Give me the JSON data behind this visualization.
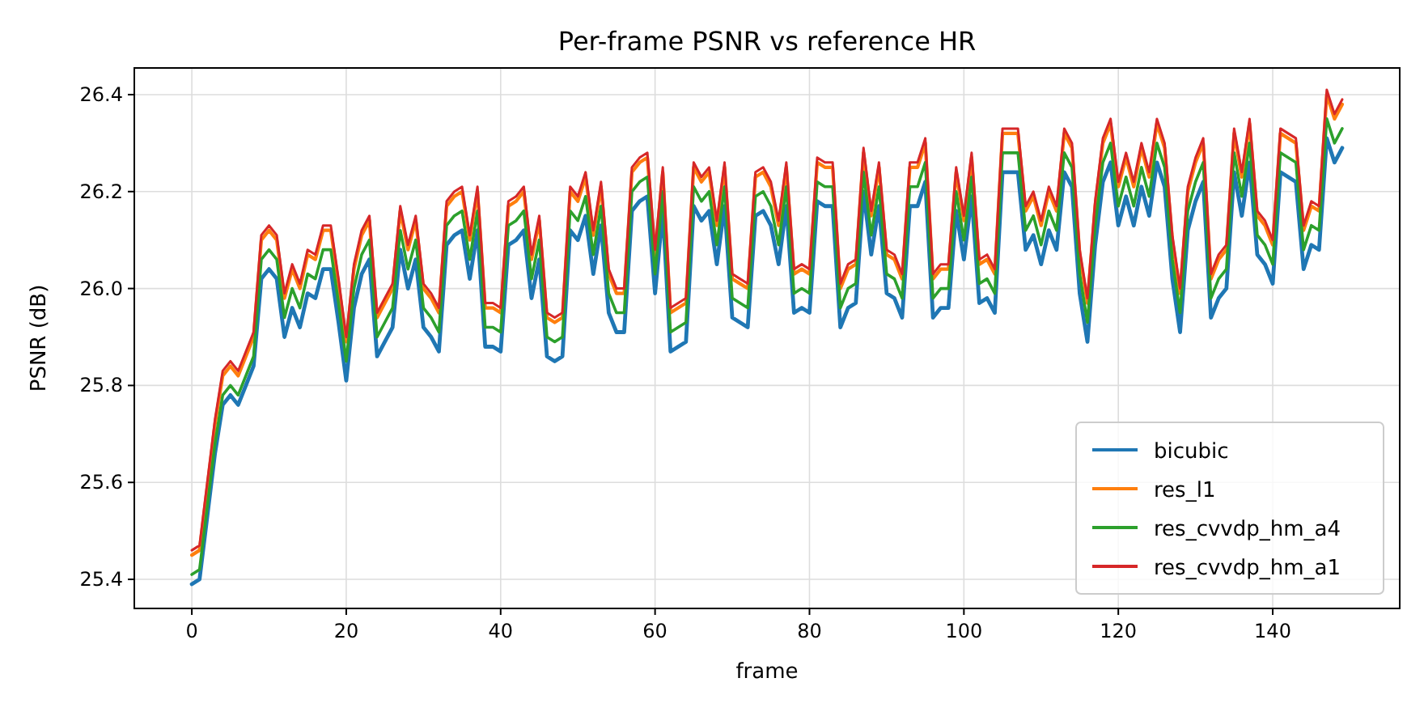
{
  "chart_data": {
    "type": "line",
    "title": "Per-frame PSNR vs reference HR",
    "xlabel": "frame",
    "ylabel": "PSNR (dB)",
    "x": [
      0,
      1,
      2,
      3,
      4,
      5,
      6,
      7,
      8,
      9,
      10,
      11,
      12,
      13,
      14,
      15,
      16,
      17,
      18,
      19,
      20,
      21,
      22,
      23,
      24,
      25,
      26,
      27,
      28,
      29,
      30,
      31,
      32,
      33,
      34,
      35,
      36,
      37,
      38,
      39,
      40,
      41,
      42,
      43,
      44,
      45,
      46,
      47,
      48,
      49,
      50,
      51,
      52,
      53,
      54,
      55,
      56,
      57,
      58,
      59,
      60,
      61,
      62,
      63,
      64,
      65,
      66,
      67,
      68,
      69,
      70,
      71,
      72,
      73,
      74,
      75,
      76,
      77,
      78,
      79,
      80,
      81,
      82,
      83,
      84,
      85,
      86,
      87,
      88,
      89,
      90,
      91,
      92,
      93,
      94,
      95,
      96,
      97,
      98,
      99,
      100,
      101,
      102,
      103,
      104,
      105,
      106,
      107,
      108,
      109,
      110,
      111,
      112,
      113,
      114,
      115,
      116,
      117,
      118,
      119,
      120,
      121,
      122,
      123,
      124,
      125,
      126,
      127,
      128,
      129,
      130,
      131,
      132,
      133,
      134,
      135,
      136,
      137,
      138,
      139,
      140,
      141,
      142,
      143,
      144,
      145,
      146,
      147,
      148,
      149
    ],
    "series": [
      {
        "name": "bicubic",
        "color": "#1f77b4",
        "values": [
          25.39,
          25.4,
          25.53,
          25.66,
          25.76,
          25.78,
          25.76,
          25.8,
          25.84,
          26.02,
          26.04,
          26.02,
          25.9,
          25.96,
          25.92,
          25.99,
          25.98,
          26.04,
          26.04,
          25.93,
          25.81,
          25.96,
          26.03,
          26.06,
          25.86,
          25.89,
          25.92,
          26.08,
          26.0,
          26.06,
          25.92,
          25.9,
          25.87,
          26.09,
          26.11,
          26.12,
          26.02,
          26.12,
          25.88,
          25.88,
          25.87,
          26.09,
          26.1,
          26.12,
          25.98,
          26.06,
          25.86,
          25.85,
          25.86,
          26.12,
          26.1,
          26.15,
          26.03,
          26.13,
          25.95,
          25.91,
          25.91,
          26.16,
          26.18,
          26.19,
          25.99,
          26.16,
          25.87,
          25.88,
          25.89,
          26.17,
          26.14,
          26.16,
          26.05,
          26.17,
          25.94,
          25.93,
          25.92,
          26.15,
          26.16,
          26.13,
          26.05,
          26.17,
          25.95,
          25.96,
          25.95,
          26.18,
          26.17,
          26.17,
          25.92,
          25.96,
          25.97,
          26.2,
          26.07,
          26.17,
          25.99,
          25.98,
          25.94,
          26.17,
          26.17,
          26.22,
          25.94,
          25.96,
          25.96,
          26.16,
          26.06,
          26.19,
          25.97,
          25.98,
          25.95,
          26.24,
          26.24,
          26.24,
          26.08,
          26.11,
          26.05,
          26.12,
          26.08,
          26.24,
          26.21,
          25.99,
          25.89,
          26.09,
          26.22,
          26.26,
          26.13,
          26.19,
          26.13,
          26.21,
          26.15,
          26.26,
          26.21,
          26.02,
          25.91,
          26.12,
          26.18,
          26.22,
          25.94,
          25.98,
          26.0,
          26.24,
          26.15,
          26.26,
          26.07,
          26.05,
          26.01,
          26.24,
          26.23,
          26.22,
          26.04,
          26.09,
          26.08,
          26.31,
          26.26,
          26.29
        ]
      },
      {
        "name": "res_l1",
        "color": "#ff7f0e",
        "values": [
          25.45,
          25.46,
          25.59,
          25.72,
          25.82,
          25.84,
          25.82,
          25.86,
          25.9,
          26.1,
          26.12,
          26.1,
          25.98,
          26.04,
          26.0,
          26.07,
          26.06,
          26.12,
          26.12,
          26.01,
          25.89,
          26.04,
          26.11,
          26.14,
          25.94,
          25.97,
          26.0,
          26.16,
          26.08,
          26.14,
          26.0,
          25.98,
          25.95,
          26.17,
          26.19,
          26.2,
          26.1,
          26.2,
          25.96,
          25.96,
          25.95,
          26.17,
          26.18,
          26.2,
          26.06,
          26.14,
          25.94,
          25.93,
          25.94,
          26.2,
          26.18,
          26.23,
          26.11,
          26.21,
          26.03,
          25.99,
          25.99,
          26.24,
          26.26,
          26.27,
          26.07,
          26.24,
          25.95,
          25.96,
          25.97,
          26.25,
          26.22,
          26.24,
          26.13,
          26.25,
          26.02,
          26.01,
          26.0,
          26.23,
          26.24,
          26.21,
          26.13,
          26.25,
          26.03,
          26.04,
          26.03,
          26.26,
          26.25,
          26.25,
          26.0,
          26.04,
          26.05,
          26.28,
          26.15,
          26.25,
          26.07,
          26.06,
          26.02,
          26.25,
          26.25,
          26.3,
          26.02,
          26.04,
          26.04,
          26.24,
          26.14,
          26.27,
          26.05,
          26.06,
          26.03,
          26.32,
          26.32,
          26.32,
          26.16,
          26.19,
          26.13,
          26.2,
          26.16,
          26.32,
          26.29,
          26.07,
          25.97,
          26.17,
          26.3,
          26.34,
          26.21,
          26.27,
          26.21,
          26.29,
          26.23,
          26.34,
          26.29,
          26.1,
          25.99,
          26.2,
          26.26,
          26.3,
          26.02,
          26.06,
          26.08,
          26.32,
          26.23,
          26.34,
          26.15,
          26.13,
          26.09,
          26.32,
          26.31,
          26.3,
          26.12,
          26.17,
          26.16,
          26.4,
          26.35,
          26.38
        ]
      },
      {
        "name": "res_cvvdp_hm_a4",
        "color": "#2ca02c",
        "values": [
          25.41,
          25.42,
          25.55,
          25.68,
          25.78,
          25.8,
          25.78,
          25.82,
          25.86,
          26.06,
          26.08,
          26.06,
          25.94,
          26.0,
          25.96,
          26.03,
          26.02,
          26.08,
          26.08,
          25.97,
          25.85,
          26.0,
          26.07,
          26.1,
          25.9,
          25.93,
          25.96,
          26.12,
          26.04,
          26.1,
          25.96,
          25.94,
          25.91,
          26.13,
          26.15,
          26.16,
          26.06,
          26.16,
          25.92,
          25.92,
          25.91,
          26.13,
          26.14,
          26.16,
          26.02,
          26.1,
          25.9,
          25.89,
          25.9,
          26.16,
          26.14,
          26.19,
          26.07,
          26.17,
          25.99,
          25.95,
          25.95,
          26.2,
          26.22,
          26.23,
          26.03,
          26.2,
          25.91,
          25.92,
          25.93,
          26.21,
          26.18,
          26.2,
          26.09,
          26.21,
          25.98,
          25.97,
          25.96,
          26.19,
          26.2,
          26.17,
          26.09,
          26.21,
          25.99,
          26.0,
          25.99,
          26.22,
          26.21,
          26.21,
          25.96,
          26.0,
          26.01,
          26.24,
          26.11,
          26.21,
          26.03,
          26.02,
          25.98,
          26.21,
          26.21,
          26.26,
          25.98,
          26.0,
          26.0,
          26.2,
          26.1,
          26.23,
          26.01,
          26.02,
          25.99,
          26.28,
          26.28,
          26.28,
          26.12,
          26.15,
          26.09,
          26.16,
          26.12,
          26.28,
          26.25,
          26.03,
          25.93,
          26.13,
          26.26,
          26.3,
          26.17,
          26.23,
          26.17,
          26.25,
          26.19,
          26.3,
          26.25,
          26.06,
          25.95,
          26.16,
          26.22,
          26.26,
          25.98,
          26.02,
          26.04,
          26.28,
          26.19,
          26.3,
          26.11,
          26.09,
          26.05,
          26.28,
          26.27,
          26.26,
          26.08,
          26.13,
          26.12,
          26.35,
          26.3,
          26.33
        ]
      },
      {
        "name": "res_cvvdp_hm_a1",
        "color": "#d62728",
        "values": [
          25.46,
          25.47,
          25.6,
          25.73,
          25.83,
          25.85,
          25.83,
          25.87,
          25.91,
          26.11,
          26.13,
          26.11,
          25.99,
          26.05,
          26.01,
          26.08,
          26.07,
          26.13,
          26.13,
          26.02,
          25.9,
          26.05,
          26.12,
          26.15,
          25.95,
          25.98,
          26.01,
          26.17,
          26.09,
          26.15,
          26.01,
          25.99,
          25.96,
          26.18,
          26.2,
          26.21,
          26.11,
          26.21,
          25.97,
          25.97,
          25.96,
          26.18,
          26.19,
          26.21,
          26.07,
          26.15,
          25.95,
          25.94,
          25.95,
          26.21,
          26.19,
          26.24,
          26.12,
          26.22,
          26.04,
          26.0,
          26.0,
          26.25,
          26.27,
          26.28,
          26.08,
          26.25,
          25.96,
          25.97,
          25.98,
          26.26,
          26.23,
          26.25,
          26.14,
          26.26,
          26.03,
          26.02,
          26.01,
          26.24,
          26.25,
          26.22,
          26.14,
          26.26,
          26.04,
          26.05,
          26.04,
          26.27,
          26.26,
          26.26,
          26.01,
          26.05,
          26.06,
          26.29,
          26.16,
          26.26,
          26.08,
          26.07,
          26.03,
          26.26,
          26.26,
          26.31,
          26.03,
          26.05,
          26.05,
          26.25,
          26.15,
          26.28,
          26.06,
          26.07,
          26.04,
          26.33,
          26.33,
          26.33,
          26.17,
          26.2,
          26.14,
          26.21,
          26.17,
          26.33,
          26.3,
          26.08,
          25.98,
          26.18,
          26.31,
          26.35,
          26.22,
          26.28,
          26.22,
          26.3,
          26.24,
          26.35,
          26.3,
          26.11,
          26.0,
          26.21,
          26.27,
          26.31,
          26.03,
          26.07,
          26.09,
          26.33,
          26.24,
          26.35,
          26.16,
          26.14,
          26.1,
          26.33,
          26.32,
          26.31,
          26.13,
          26.18,
          26.17,
          26.41,
          26.36,
          26.39
        ]
      }
    ],
    "xlim": [
      -7.45,
      156.45
    ],
    "xticks": [
      0,
      20,
      40,
      60,
      80,
      100,
      120,
      140
    ],
    "ylim": [
      25.34,
      26.455
    ],
    "yticks": [
      25.4,
      25.6,
      25.8,
      {
        "value": 26,
        "label": "26.0"
      },
      26.2,
      26.4
    ],
    "grid": true,
    "legend": "bottom right"
  }
}
